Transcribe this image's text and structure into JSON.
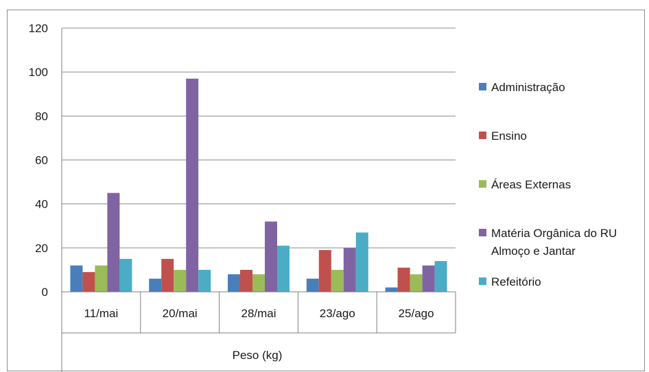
{
  "chart_data": {
    "type": "bar",
    "categories": [
      "11/mai",
      "20/mai",
      "28/mai",
      "23/ago",
      "25/ago"
    ],
    "series": [
      {
        "name": "Administração",
        "color": "#4a7ebb",
        "values": [
          12,
          6,
          8,
          6,
          2
        ]
      },
      {
        "name": "Ensino",
        "color": "#c0504d",
        "values": [
          9,
          15,
          10,
          19,
          11
        ]
      },
      {
        "name": "Áreas Externas",
        "color": "#9bbb59",
        "values": [
          12,
          10,
          8,
          10,
          8
        ]
      },
      {
        "name": "Matéria Orgânica do RU Almoço e Jantar",
        "legend_lines": [
          "Matéria Orgânica do RU",
          "Almoço e Jantar"
        ],
        "color": "#8064a2",
        "values": [
          45,
          97,
          32,
          20,
          12
        ]
      },
      {
        "name": "Refeitório",
        "color": "#4bacc6",
        "values": [
          15,
          10,
          21,
          27,
          14
        ]
      }
    ],
    "xlabel": "Peso (kg)",
    "ylabel": "",
    "ylim": [
      0,
      120
    ],
    "yticks": [
      "0",
      "20",
      "40",
      "60",
      "80",
      "100",
      "120"
    ],
    "grid": true,
    "legend_position": "right"
  }
}
